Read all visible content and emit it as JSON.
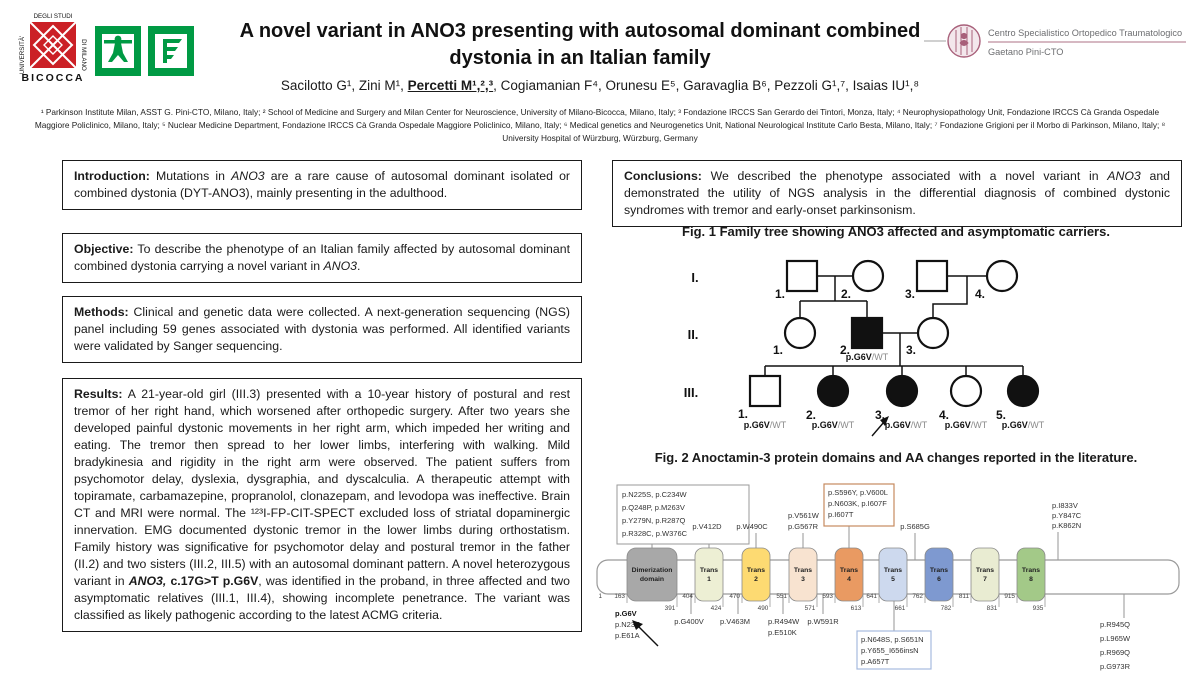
{
  "header": {
    "title_line1": "A novel variant in ANO3 presenting with autosomal dominant combined",
    "title_line2": "dystonia in an Italian family",
    "authors_runs": [
      {
        "t": "Sacilotto G¹, Zini M¹, "
      },
      {
        "t": "Percetti M¹,²,³",
        "b": true,
        "u": true
      },
      {
        "t": ", Cogiamanian F⁴, Orunesu E⁵, Garavaglia B⁶, Pezzoli G¹,⁷, Isaias IU¹,⁸"
      }
    ],
    "affiliations": "¹ Parkinson Institute Milan, ASST G. Pini-CTO, Milano, Italy; ² School of Medicine and Surgery and Milan Center for Neuroscience, University of Milano-Bicocca, Milano, Italy; ³ Fondazione IRCCS San Gerardo dei Tintori, Monza, Italy; ⁴ Neurophysiopathology Unit, Fondazione IRCCS Cà Granda Ospedale Maggiore Policlinico, Milano, Italy; ⁵ Nuclear Medicine Department, Fondazione IRCCS Cà Granda Ospedale Maggiore Policlinico, Milano, Italy; ⁶ Medical genetics and Neurogenetics Unit, National Neurological Institute Carlo Besta, Milano, Italy; ⁷ Fondazione Grigioni per il Morbo di Parkinson, Milano, Italy; ⁸ University Hospital of Würzburg, Würzburg, Germany",
    "logos": {
      "bicocca": {
        "left": "UNIVERSITÀ'",
        "top": "DEGLI STUDI",
        "right": "DI MILANO",
        "bottom": "BICOCCA",
        "red": "#cb2026"
      },
      "green": "#009a44",
      "pini": {
        "line1": "Centro Specialistico Ortopedico Traumatologico",
        "line2": "Gaetano Pini-CTO",
        "accent": "#a8607a"
      }
    }
  },
  "sections": {
    "introduction": {
      "runs": [
        {
          "t": "Introduction:",
          "b": true
        },
        {
          "t": " Mutations in "
        },
        {
          "t": "ANO3",
          "i": true
        },
        {
          "t": " are a rare cause of autosomal dominant isolated or combined dystonia (DYT-ANO3), mainly presenting in the adulthood."
        }
      ]
    },
    "objective": {
      "runs": [
        {
          "t": "Objective:",
          "b": true
        },
        {
          "t": " To describe the phenotype of an Italian family affected by autosomal dominant combined dystonia carrying a novel variant in "
        },
        {
          "t": "ANO3",
          "i": true
        },
        {
          "t": "."
        }
      ]
    },
    "methods": {
      "runs": [
        {
          "t": "Methods:",
          "b": true
        },
        {
          "t": " Clinical and genetic data were collected. A next-generation sequencing (NGS) panel including 59 genes associated with dystonia was performed. All identified variants were validated by Sanger sequencing."
        }
      ]
    },
    "results": {
      "runs": [
        {
          "t": "Results:",
          "b": true
        },
        {
          "t": " A 21-year-old girl (III.3) presented with a 10-year history of postural and rest tremor of her right hand, which worsened after orthopedic surgery. After two years she developed painful dystonic movements in her right arm, which impeded her writing and eating. The tremor then spread to her lower limbs, interfering with walking. Mild bradykinesia and rigidity in the right arm were observed. The patient suffers from psychomotor delay, dyslexia, dysgraphia, and dyscalculia. A therapeutic attempt with topiramate, carbamazepine, propranolol, clonazepam, and levodopa was ineffective. Brain CT and MRI were normal. The ¹²³I-FP-CIT-SPECT excluded loss of striatal dopaminergic innervation. EMG documented dystonic tremor in the lower limbs during orthostatism. Family history was significative for psychomotor delay and postural tremor in the father (II.2) and two sisters (III.2, III.5) with an autosomal dominant pattern. A novel heterozygous variant in "
        },
        {
          "t": "ANO3,",
          "b": true,
          "i": true
        },
        {
          "t": " c.17G>T p.G6V",
          "b": true
        },
        {
          "t": ", was identified in the proband, in three affected and two asymptomatic relatives (III.1, III.4), showing incomplete penetrance. The variant was classified as likely pathogenic according to the latest ACMG criteria."
        }
      ]
    },
    "conclusions": {
      "runs": [
        {
          "t": "Conclusions:",
          "b": true
        },
        {
          "t": " We described the phenotype associated with a novel variant in "
        },
        {
          "t": "ANO3",
          "i": true
        },
        {
          "t": " and demonstrated the utility of NGS analysis in the differential diagnosis of combined dystonic syndromes with tremor and early-onset parkinsonism."
        }
      ]
    }
  },
  "fig1": {
    "caption": "Fig. 1 Family tree showing ANO3 affected and asymptomatic carriers.",
    "generation_labels": [
      "I.",
      "II.",
      "III."
    ],
    "gen1_labels": [
      "1.",
      "2.",
      "3.",
      "4."
    ],
    "gen2_labels": [
      "1.",
      "2.",
      "3."
    ],
    "gen3_labels": [
      "1.",
      "2.",
      "3.",
      "4.",
      "5."
    ],
    "genotype_variant": "p.G6V",
    "genotype_wt": "/WT"
  },
  "fig2": {
    "caption": "Fig. 2 Anoctamin-3 protein domains and AA changes reported in the literature.",
    "start_label": "1",
    "domains": [
      {
        "name1": "Dimerization",
        "name2": "domain",
        "color": "#a8a8a8",
        "start": "163",
        "end": "391"
      },
      {
        "name1": "Trans",
        "name2": "1",
        "color": "#edefd4",
        "start": "404",
        "end": "424"
      },
      {
        "name1": "Trans",
        "name2": "2",
        "color": "#fdda72",
        "start": "470",
        "end": "490"
      },
      {
        "name1": "Trans",
        "name2": "3",
        "color": "#f8e3d0",
        "start": "551",
        "end": "571"
      },
      {
        "name1": "Trans",
        "name2": "4",
        "color": "#e99a62",
        "start": "593",
        "end": "613"
      },
      {
        "name1": "Trans",
        "name2": "5",
        "color": "#cdd9ee",
        "start": "641",
        "end": "661"
      },
      {
        "name1": "Trans",
        "name2": "6",
        "color": "#7e99d0",
        "start": "762",
        "end": "782"
      },
      {
        "name1": "Trans",
        "name2": "7",
        "color": "#e9ecd2",
        "start": "811",
        "end": "831"
      },
      {
        "name1": "Trans",
        "name2": "8",
        "color": "#a3c988",
        "start": "915",
        "end": "935"
      }
    ],
    "topA": {
      "lines": [
        "p.N225S, p.C234W",
        "p.Q248P, p.M263V",
        "p.Y279N, p.R287Q",
        "p.R328C, p.W376C"
      ]
    },
    "topB": {
      "lines": [
        "p.V412D"
      ]
    },
    "topC": {
      "lines": [
        "p.W490C"
      ]
    },
    "topD": {
      "lines": [
        "p.V561W",
        "p.G567R"
      ]
    },
    "topE": {
      "lines": [
        "p.S596Y, p.V600L",
        "p.N603K, p.I607F",
        "p.I607T"
      ]
    },
    "topF": {
      "lines": [
        "p.S685G"
      ]
    },
    "topG": {
      "lines": [
        "p.I833V",
        "p.Y847C",
        "p.K862N"
      ]
    },
    "botA": {
      "lines": [
        "p.G6V",
        "p.N23T",
        "p.E61A"
      ]
    },
    "botB": {
      "lines": [
        "p.G400V"
      ]
    },
    "botC": {
      "lines": [
        "p.V463M"
      ]
    },
    "botD": {
      "lines": [
        "p.R494W",
        "p.E510K"
      ]
    },
    "botE": {
      "lines": [
        "p.W591R"
      ]
    },
    "botF": {
      "lines": [
        "p.N648S, p.S651N",
        "p.Y655_I656insN",
        "p.A657T"
      ]
    },
    "botG": {
      "lines": [
        "p.R945Q",
        "p.L965W",
        "p.R969Q",
        "p.G973R"
      ]
    },
    "colors": {
      "gray_box": "#9a9a9a",
      "orange_box": "#c68a5f",
      "blue_box": "#a6bade"
    }
  }
}
